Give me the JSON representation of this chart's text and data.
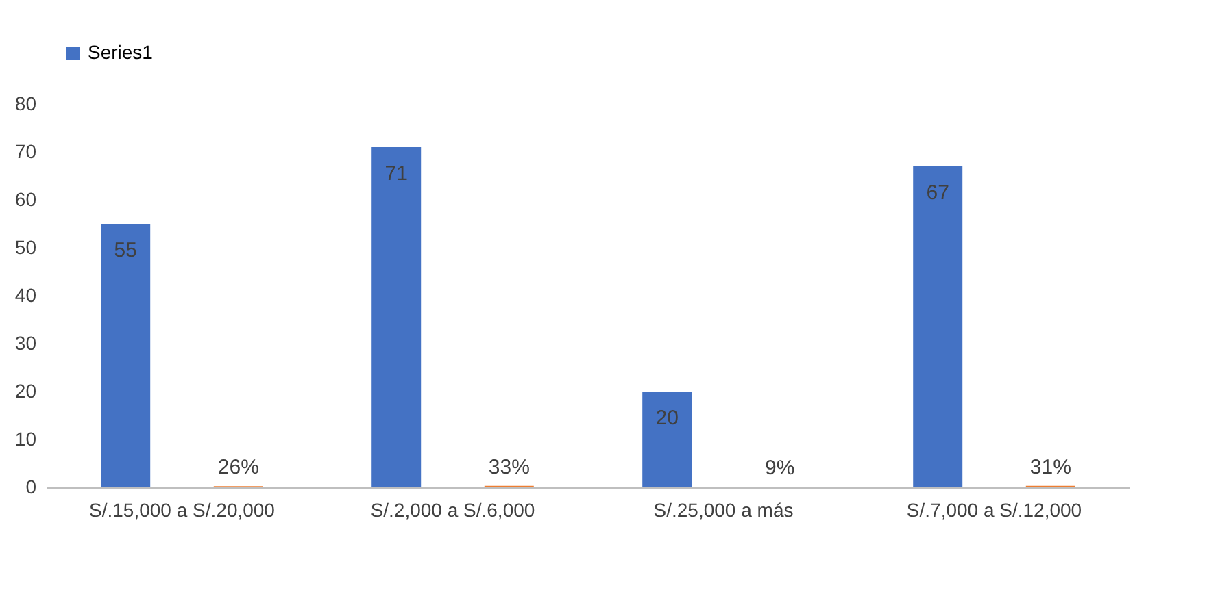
{
  "chart_data": {
    "type": "bar",
    "categories": [
      "S/.15,000 a S/.20,000",
      "S/.2,000 a S/.6,000",
      "S/.25,000 a más",
      "S/.7,000 a S/.12,000"
    ],
    "series": [
      {
        "name": "Series1",
        "color": "#4472c4",
        "values": [
          55,
          71,
          20,
          67
        ],
        "value_labels": [
          "55",
          "71",
          "20",
          "67"
        ]
      },
      {
        "color": "#ed7d31",
        "values": [
          0.26,
          0.33,
          0.09,
          0.31
        ],
        "value_labels": [
          "26%",
          "33%",
          "9%",
          "31%"
        ]
      }
    ],
    "ylim": [
      0,
      80
    ],
    "yticks": [
      0,
      10,
      20,
      30,
      40,
      50,
      60,
      70,
      80
    ],
    "grid": false,
    "legend": "top"
  }
}
